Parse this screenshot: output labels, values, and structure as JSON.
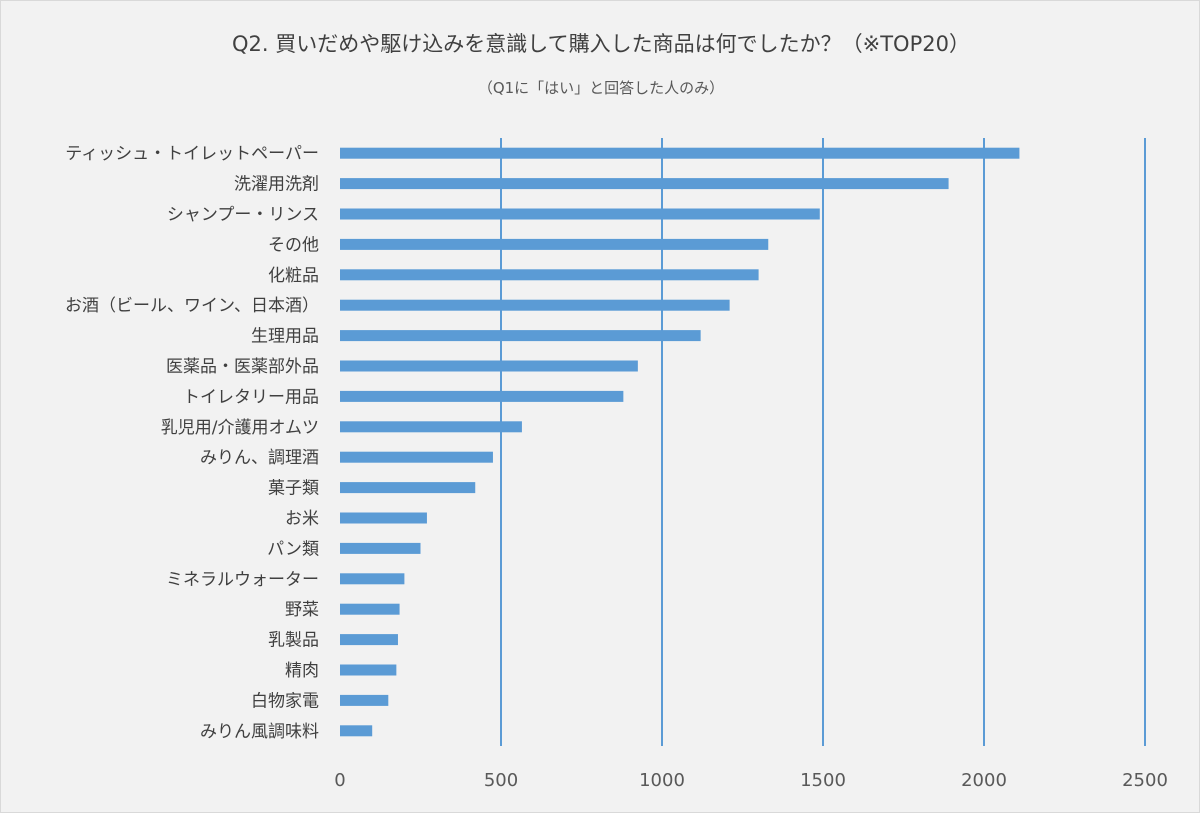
{
  "chart_data": {
    "type": "bar",
    "orientation": "horizontal",
    "title": "Q2. 買いだめや駆け込みを意識して購入した商品は何でしたか？（※TOP20）",
    "subtitle": "（Q1に「はい」と回答した人のみ）",
    "categories": [
      "ティッシュ・トイレットペーパー",
      "洗濯用洗剤",
      "シャンプー・リンス",
      "その他",
      "化粧品",
      "お酒（ビール、ワイン、日本酒）",
      "生理用品",
      "医薬品・医薬部外品",
      "トイレタリー用品",
      "乳児用/介護用オムツ",
      "みりん、調理酒",
      "菓子類",
      "お米",
      "パン類",
      "ミネラルウォーター",
      "野菜",
      "乳製品",
      "精肉",
      "白物家電",
      "みりん風調味料"
    ],
    "values": [
      2110,
      1890,
      1490,
      1330,
      1300,
      1210,
      1120,
      925,
      880,
      565,
      475,
      420,
      270,
      250,
      200,
      185,
      180,
      175,
      150,
      100
    ],
    "xlim": [
      0,
      2500
    ],
    "xticks": [
      "0",
      "500",
      "1000",
      "1500",
      "2000",
      "2500"
    ],
    "xlabel": "",
    "ylabel": "",
    "grid": "vertical",
    "legend": "none",
    "colors": {
      "bar": "#5b9bd5",
      "grid": "#5b9bd5",
      "background": "#f2f2f2"
    }
  }
}
